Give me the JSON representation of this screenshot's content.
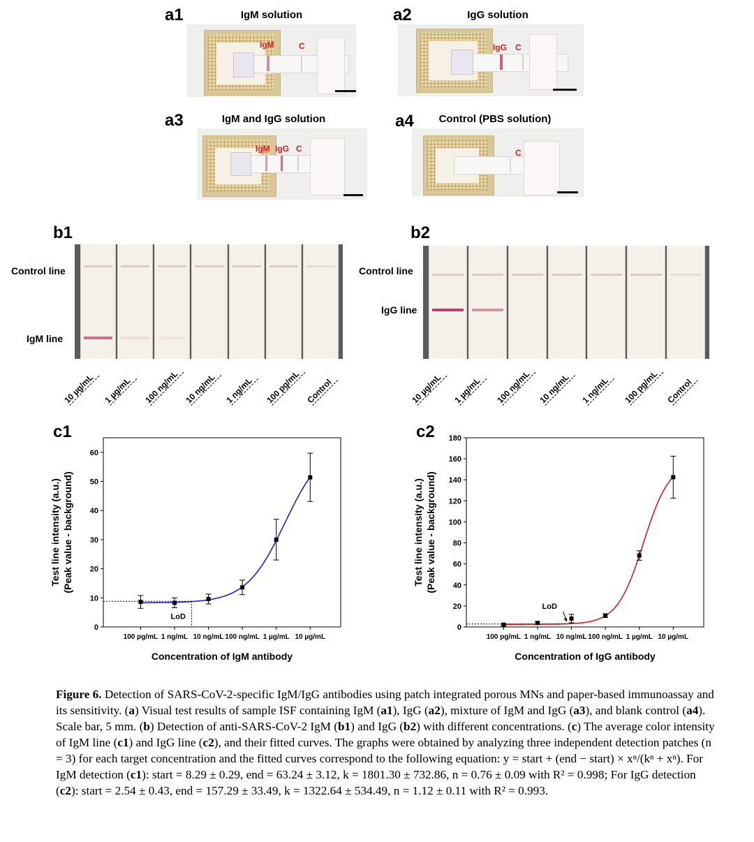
{
  "panel_a": {
    "a1": {
      "letter": "a1",
      "title": "IgM solution",
      "labels": [
        "IgM",
        "C"
      ]
    },
    "a2": {
      "letter": "a2",
      "title": "IgG solution",
      "labels": [
        "IgG",
        "C"
      ]
    },
    "a3": {
      "letter": "a3",
      "title": "IgM and IgG solution",
      "labels": [
        "IgM",
        "IgG",
        "C"
      ]
    },
    "a4": {
      "letter": "a4",
      "title": "Control (PBS solution)",
      "labels": [
        "C"
      ]
    }
  },
  "panel_b": {
    "b1": {
      "letter": "b1",
      "row_labels": [
        "Control line",
        "IgM line"
      ],
      "concentrations": [
        "10 µg/mL",
        "1 µg/mL",
        "100 ng/mL",
        "10 ng/mL",
        "1 ng/mL",
        "100 pg/mL",
        "Control"
      ]
    },
    "b2": {
      "letter": "b2",
      "row_labels": [
        "Control line",
        "IgG line"
      ],
      "concentrations": [
        "10 µg/mL",
        "1 µg/mL",
        "100 ng/mL",
        "10 ng/mL",
        "1 ng/mL",
        "100 pg/mL",
        "Control"
      ]
    }
  },
  "chart_data": [
    {
      "id": "c1",
      "type": "scatter",
      "letter": "c1",
      "xlabel": "Concentration of IgM antibody",
      "ylabel_line1": "Test line intensity (a.u.)",
      "ylabel_line2": "(Peak value - background)",
      "x_tick_labels": [
        "100 pg/mL",
        "1 ng/mL",
        "10 ng/mL",
        "100 ng/mL",
        "1 µg/mL",
        "10 µg/mL"
      ],
      "x_scale": "log",
      "x_values_ng_per_mL": [
        0.1,
        1,
        10,
        100,
        1000,
        10000
      ],
      "y_values": [
        8.6,
        8.3,
        9.6,
        13.6,
        30.0,
        51.4
      ],
      "y_error": [
        2.2,
        1.7,
        1.7,
        2.5,
        7.0,
        8.3
      ],
      "ylim": [
        0,
        65
      ],
      "y_ticks": [
        0,
        10,
        20,
        30,
        40,
        50,
        60
      ],
      "fit": {
        "start": 8.29,
        "end": 63.24,
        "k": 1801.3,
        "n": 0.76,
        "color": "#1f1fe0"
      },
      "lod_label": "LoD",
      "lod_x_ng_per_mL": 3.2,
      "lod_y": 8.8
    },
    {
      "id": "c2",
      "type": "scatter",
      "letter": "c2",
      "xlabel": "Concentration of IgG antibody",
      "ylabel_line1": "Test line intensity (a.u.)",
      "ylabel_line2": "(Peak value - background)",
      "x_tick_labels": [
        "100 pg/mL",
        "1 ng/mL",
        "10 ng/mL",
        "100 ng/mL",
        "1 µg/mL",
        "10 µg/mL"
      ],
      "x_scale": "log",
      "x_values_ng_per_mL": [
        0.1,
        1,
        10,
        100,
        1000,
        10000
      ],
      "y_values": [
        2.2,
        3.8,
        8.0,
        10.8,
        68.0,
        142.5
      ],
      "y_error": [
        0.8,
        1.2,
        4.0,
        1.8,
        4.5,
        20.0
      ],
      "ylim": [
        0,
        180
      ],
      "y_ticks": [
        0,
        20,
        40,
        60,
        80,
        100,
        120,
        140,
        160,
        180
      ],
      "fit": {
        "start": 2.54,
        "end": 157.29,
        "k": 1322.64,
        "n": 1.12,
        "color": "#e41a1c"
      },
      "lod_label": "LoD",
      "lod_x_ng_per_mL": 7.5,
      "lod_y": 2.8
    }
  ],
  "caption": {
    "label": "Figure 6.",
    "segments": [
      {
        "b": false,
        "t": "  Detection of SARS-CoV-2-specific IgM/IgG antibodies using patch integrated porous MNs and paper-based immunoassay and its sensitivity. ("
      },
      {
        "b": true,
        "t": "a"
      },
      {
        "b": false,
        "t": ") Visual test results of sample ISF containing IgM ("
      },
      {
        "b": true,
        "t": "a1"
      },
      {
        "b": false,
        "t": "), IgG ("
      },
      {
        "b": true,
        "t": "a2"
      },
      {
        "b": false,
        "t": "), mixture of IgM and IgG ("
      },
      {
        "b": true,
        "t": "a3"
      },
      {
        "b": false,
        "t": "), and blank control ("
      },
      {
        "b": true,
        "t": "a4"
      },
      {
        "b": false,
        "t": "). Scale bar, 5 mm. ("
      },
      {
        "b": true,
        "t": "b"
      },
      {
        "b": false,
        "t": ") Detection of anti-SARS-CoV-2 IgM ("
      },
      {
        "b": true,
        "t": "b1"
      },
      {
        "b": false,
        "t": ") and IgG ("
      },
      {
        "b": true,
        "t": "b2"
      },
      {
        "b": false,
        "t": ") with different concentrations. ("
      },
      {
        "b": true,
        "t": "c"
      },
      {
        "b": false,
        "t": ") The average color intensity of IgM line ("
      },
      {
        "b": true,
        "t": "c1"
      },
      {
        "b": false,
        "t": ") and IgG line ("
      },
      {
        "b": true,
        "t": "c2"
      },
      {
        "b": false,
        "t": "), and their fitted curves. The graphs were obtained by analyzing three independent detection patches (n = 3) for each target concentration and the fitted curves correspond to the following equation: y = start + (end − start) × xⁿ/(kⁿ + xⁿ). For IgM detection ("
      },
      {
        "b": true,
        "t": "c1"
      },
      {
        "b": false,
        "t": "): start = 8.29 ± 0.29, end = 63.24 ± 3.12, k = 1801.30 ± 732.86, n = 0.76 ± 0.09 with R² = 0.998; For IgG detection ("
      },
      {
        "b": true,
        "t": "c2"
      },
      {
        "b": false,
        "t": "): start = 2.54 ± 0.43, end = 157.29 ± 33.49, k = 1322.64 ± 534.49, n = 1.12 ± 0.11 with R² = 0.993."
      }
    ]
  }
}
